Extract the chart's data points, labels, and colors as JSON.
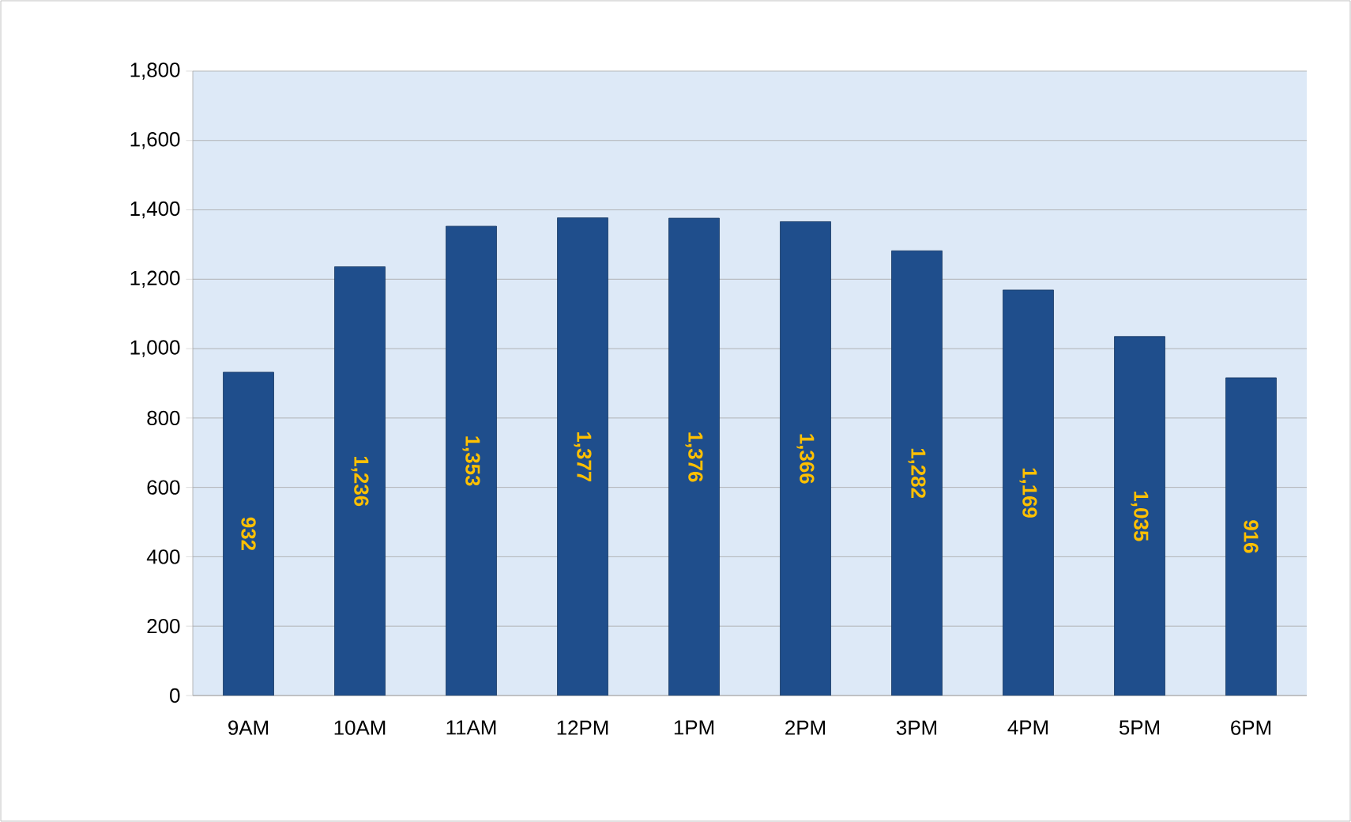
{
  "chart_data": {
    "type": "bar",
    "categories": [
      "9AM",
      "10AM",
      "11AM",
      "12PM",
      "1PM",
      "2PM",
      "3PM",
      "4PM",
      "5PM",
      "6PM"
    ],
    "values": [
      932,
      1236,
      1353,
      1377,
      1376,
      1366,
      1282,
      1169,
      1035,
      916
    ],
    "value_labels": [
      "932",
      "1,236",
      "1,353",
      "1,377",
      "1,376",
      "1,366",
      "1,282",
      "1,169",
      "1,035",
      "916"
    ],
    "color": "#1f4e8c",
    "ylim": [
      0,
      1800
    ],
    "yticks": [
      0,
      200,
      400,
      600,
      800,
      {
        "value": 1000,
        "label": "1,000"
      },
      {
        "value": 1200,
        "label": "1,200"
      },
      {
        "value": 1400,
        "label": "1,400"
      },
      {
        "value": 1600,
        "label": "1,600"
      },
      {
        "value": 1800,
        "label": "1,800"
      }
    ],
    "grid": "y"
  }
}
